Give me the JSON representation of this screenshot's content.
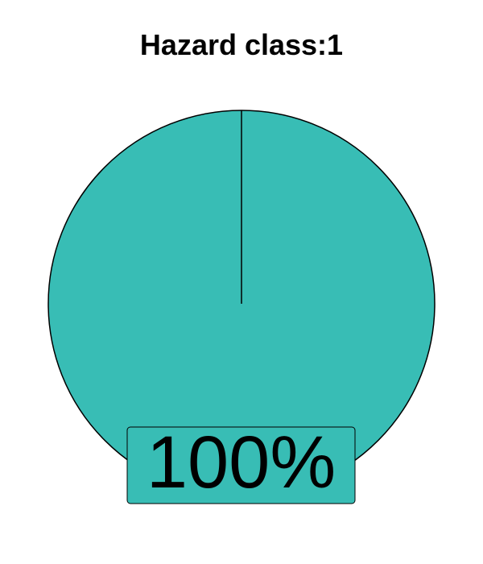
{
  "chart_data": {
    "type": "pie",
    "title": "Hazard class:1",
    "slices": [
      {
        "value": 100,
        "label": "100%",
        "color": "#38bdb5"
      }
    ],
    "legend": "none",
    "grid": false
  },
  "colors": {
    "slice_fill": "#38bdb5",
    "outline": "#000000",
    "background": "#ffffff"
  }
}
